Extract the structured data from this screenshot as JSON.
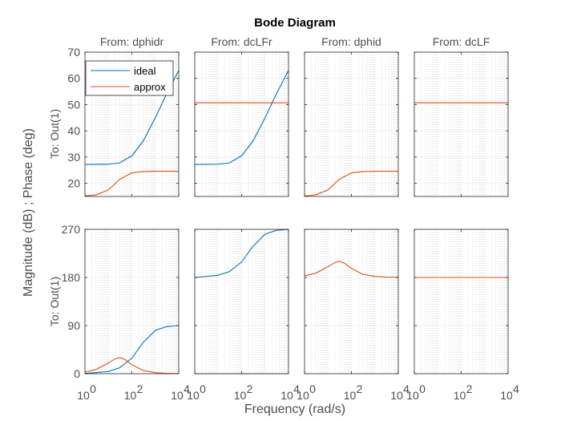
{
  "chart_data": {
    "type": "line",
    "title": "Bode Diagram",
    "xlabel": "Frequency  (rad/s)",
    "ylabel": "Magnitude (dB) ; Phase (deg)",
    "xscale": "log",
    "xlim": [
      1,
      10000
    ],
    "xticks": [
      1,
      100,
      10000
    ],
    "xtick_labels": [
      [
        "10",
        "0"
      ],
      [
        "10",
        "2"
      ],
      [
        "10",
        "4"
      ]
    ],
    "grid": true,
    "legend": {
      "location": "top-left",
      "entries": [
        "ideal",
        "approx"
      ]
    },
    "colors": {
      "ideal": "#0072bd",
      "approx": "#d95319"
    },
    "inputs": [
      "From: dphidr",
      "From: dcLFr",
      "From: dphid",
      "From: dcLF"
    ],
    "output_label": "To: Out(1)",
    "rows": [
      {
        "name": "magnitude",
        "unit": "dB",
        "ylim": [
          15,
          70
        ],
        "yticks": [
          20,
          30,
          40,
          50,
          60,
          70
        ]
      },
      {
        "name": "phase",
        "unit": "deg",
        "ylim": [
          0,
          270
        ],
        "yticks": [
          0,
          90,
          180,
          270
        ]
      }
    ],
    "series": [
      {
        "name": "ideal",
        "magnitude": [
          {
            "x": [
              1,
              10,
              30,
              100,
              300,
              1000,
              3000,
              10000
            ],
            "y": [
              27.2,
              27.3,
              27.8,
              30.5,
              36,
              45,
              54,
              63
            ]
          },
          {
            "x": [
              1,
              10,
              30,
              100,
              300,
              1000,
              3000,
              10000
            ],
            "y": [
              27.2,
              27.3,
              27.8,
              30.5,
              36,
              45,
              54,
              63
            ]
          },
          null,
          null
        ],
        "phase": [
          {
            "x": [
              1,
              10,
              30,
              100,
              300,
              1000,
              3000,
              10000
            ],
            "y": [
              0.5,
              4,
              11,
              29,
              58,
              81,
              88,
              90
            ]
          },
          {
            "x": [
              1,
              10,
              30,
              100,
              300,
              1000,
              3000,
              10000
            ],
            "y": [
              180,
              184,
              191,
              209,
              238,
              261,
              268,
              270
            ]
          },
          null,
          null
        ]
      },
      {
        "name": "approx",
        "magnitude": [
          {
            "x": [
              1,
              3,
              10,
              30,
              100,
              300,
              1000,
              10000
            ],
            "y": [
              15.2,
              15.6,
              17.5,
              21.5,
              24,
              24.5,
              24.6,
              24.6
            ]
          },
          {
            "x": [
              1,
              10000
            ],
            "y": [
              50.7,
              50.7
            ]
          },
          {
            "x": [
              1,
              3,
              10,
              30,
              100,
              300,
              1000,
              10000
            ],
            "y": [
              15.2,
              15.6,
              17.5,
              21.5,
              24,
              24.5,
              24.6,
              24.6
            ]
          },
          {
            "x": [
              1,
              10000
            ],
            "y": [
              50.7,
              50.7
            ]
          }
        ],
        "phase": [
          {
            "x": [
              1,
              3,
              10,
              20,
              30,
              50,
              100,
              300,
              1000,
              3000,
              10000
            ],
            "y": [
              3,
              8,
              20,
              28,
              30,
              27,
              17,
              6,
              2,
              0.6,
              0.2
            ]
          },
          {
            "x": [
              1,
              10000
            ],
            "y": [
              0,
              0
            ]
          },
          {
            "x": [
              1,
              3,
              10,
              20,
              30,
              50,
              100,
              300,
              1000,
              3000,
              10000
            ],
            "y": [
              183,
              188,
              200,
              208,
              210,
              207,
              197,
              186,
              182,
              180.6,
              180.2
            ]
          },
          {
            "x": [
              1,
              10000
            ],
            "y": [
              180,
              180
            ]
          }
        ]
      }
    ]
  }
}
